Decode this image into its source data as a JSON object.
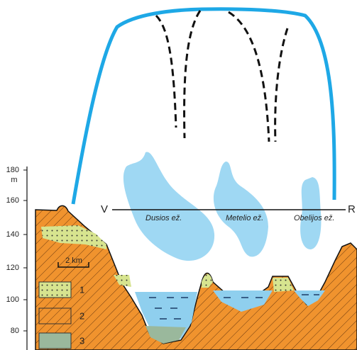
{
  "axis": {
    "unit": "m",
    "ticks": [
      180,
      160,
      140,
      120,
      100,
      80
    ]
  },
  "profile": {
    "start": "V",
    "end": "R"
  },
  "lakes": [
    "Dusios ež.",
    "Metelio ež.",
    "Obelijos ež."
  ],
  "scale": "2 km",
  "legend": [
    "1",
    "2",
    "3"
  ]
}
